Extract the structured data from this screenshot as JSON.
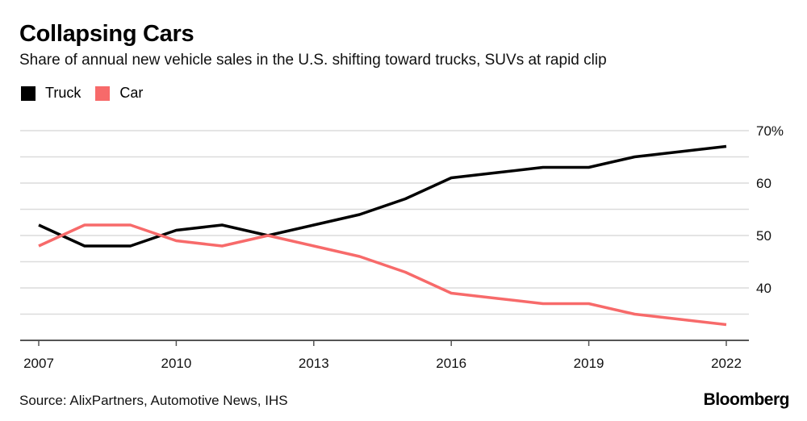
{
  "header": {
    "title": "Collapsing Cars",
    "subtitle": "Share of annual new vehicle sales in the U.S. shifting toward trucks, SUVs at rapid clip"
  },
  "legend": [
    {
      "label": "Truck",
      "color": "#000000"
    },
    {
      "label": "Car",
      "color": "#f76a6a"
    }
  ],
  "footer": {
    "source": "Source: AlixPartners, Automotive News, IHS",
    "brand": "Bloomberg"
  },
  "chart_data": {
    "type": "line",
    "title": "Collapsing Cars",
    "subtitle": "Share of annual new vehicle sales in the U.S. shifting toward trucks, SUVs at rapid clip",
    "xlabel": "",
    "ylabel": "",
    "x": [
      2007,
      2008,
      2009,
      2010,
      2011,
      2012,
      2013,
      2014,
      2015,
      2016,
      2017,
      2018,
      2019,
      2020,
      2021,
      2022
    ],
    "series": [
      {
        "name": "Truck",
        "color": "#000000",
        "values": [
          52,
          48,
          48,
          51,
          52,
          50,
          52,
          54,
          57,
          61,
          62,
          63,
          63,
          65,
          66,
          67
        ]
      },
      {
        "name": "Car",
        "color": "#f76a6a",
        "values": [
          48,
          52,
          52,
          49,
          48,
          50,
          48,
          46,
          43,
          39,
          38,
          37,
          37,
          35,
          34,
          33
        ]
      }
    ],
    "xlim": [
      2007,
      2022
    ],
    "ylim": [
      30,
      70
    ],
    "x_ticks": [
      2007,
      2010,
      2013,
      2016,
      2019,
      2022
    ],
    "x_tick_labels": [
      "2007",
      "2010",
      "2013",
      "2016",
      "2019",
      "2022"
    ],
    "y_ticks": [
      40,
      50,
      60,
      70
    ],
    "y_tick_labels": [
      "40",
      "50",
      "60",
      "70%"
    ],
    "gridlines": [
      35,
      40,
      45,
      50,
      55,
      60,
      65,
      70
    ],
    "grid": true,
    "y_axis_side": "right",
    "legend_position": "top-left",
    "source": "Source: AlixPartners, Automotive News, IHS"
  }
}
